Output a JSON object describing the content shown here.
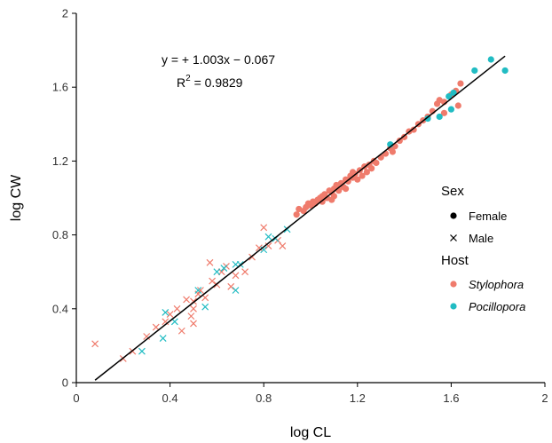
{
  "chart_data": {
    "type": "scatter",
    "title": "",
    "xlabel": "log CL",
    "ylabel": "log CW",
    "xlim": [
      0,
      2
    ],
    "ylim": [
      0,
      2
    ],
    "xticks": [
      0,
      0.4,
      0.8,
      1.2,
      1.6,
      2
    ],
    "yticks": [
      0,
      0.4,
      0.8,
      1.2,
      1.6,
      2
    ],
    "xtick_labels": [
      "0",
      "0.4",
      "0.8",
      "1.2",
      "1.6",
      "2"
    ],
    "ytick_labels": [
      "0",
      "0.4",
      "0.8",
      "1.2",
      "1.6",
      "2"
    ],
    "grid": false,
    "legend_position": "right",
    "colors": {
      "Stylophora": "#ef7b6c",
      "Pocillopora": "#21bcc3",
      "line": "#000000"
    },
    "annotation": {
      "equation": "y = + 1.003x − 0.067",
      "r2_prefix": "R",
      "r2_sup": "2",
      "r2_value": " = 0.9829"
    },
    "regression": {
      "slope": 1.003,
      "intercept": -0.067,
      "x_range": [
        0.08,
        1.83
      ]
    },
    "legend": {
      "sex_title": "Sex",
      "sex_items": [
        {
          "label": "Female",
          "marker": "circle"
        },
        {
          "label": "Male",
          "marker": "cross"
        }
      ],
      "host_title": "Host",
      "host_items": [
        {
          "label": "Stylophora",
          "color": "#ef7b6c"
        },
        {
          "label": "Pocillopora",
          "color": "#21bcc3"
        }
      ]
    },
    "series": [
      {
        "name": "Stylophora",
        "sex": "Female",
        "points": [
          [
            0.94,
            0.91
          ],
          [
            0.95,
            0.94
          ],
          [
            0.97,
            0.93
          ],
          [
            0.98,
            0.95
          ],
          [
            0.99,
            0.97
          ],
          [
            1.0,
            0.96
          ],
          [
            1.01,
            0.98
          ],
          [
            1.02,
            0.97
          ],
          [
            1.03,
            0.99
          ],
          [
            1.04,
            1.0
          ],
          [
            1.05,
            1.01
          ],
          [
            1.05,
            0.98
          ],
          [
            1.06,
            1.02
          ],
          [
            1.07,
            1.0
          ],
          [
            1.08,
            1.04
          ],
          [
            1.09,
            1.03
          ],
          [
            1.1,
            1.05
          ],
          [
            1.1,
            1.01
          ],
          [
            1.11,
            1.07
          ],
          [
            1.12,
            1.04
          ],
          [
            1.13,
            1.08
          ],
          [
            1.14,
            1.06
          ],
          [
            1.15,
            1.1
          ],
          [
            1.15,
            1.05
          ],
          [
            1.16,
            1.09
          ],
          [
            1.17,
            1.12
          ],
          [
            1.18,
            1.11
          ],
          [
            1.18,
            1.14
          ],
          [
            1.19,
            1.13
          ],
          [
            1.2,
            1.1
          ],
          [
            1.21,
            1.15
          ],
          [
            1.22,
            1.12
          ],
          [
            1.23,
            1.17
          ],
          [
            1.24,
            1.14
          ],
          [
            1.25,
            1.18
          ],
          [
            1.26,
            1.16
          ],
          [
            1.27,
            1.2
          ],
          [
            1.28,
            1.19
          ],
          [
            1.3,
            1.22
          ],
          [
            1.32,
            1.24
          ],
          [
            1.34,
            1.27
          ],
          [
            1.36,
            1.28
          ],
          [
            1.38,
            1.31
          ],
          [
            1.4,
            1.33
          ],
          [
            1.42,
            1.36
          ],
          [
            1.44,
            1.37
          ],
          [
            1.46,
            1.4
          ],
          [
            1.48,
            1.42
          ],
          [
            1.5,
            1.44
          ],
          [
            1.52,
            1.47
          ],
          [
            1.54,
            1.51
          ],
          [
            1.55,
            1.53
          ],
          [
            1.57,
            1.52
          ],
          [
            1.6,
            1.56
          ],
          [
            1.62,
            1.58
          ],
          [
            1.64,
            1.62
          ],
          [
            1.63,
            1.5
          ],
          [
            1.57,
            1.46
          ],
          [
            1.35,
            1.25
          ],
          [
            1.09,
            0.99
          ]
        ]
      },
      {
        "name": "Pocillopora",
        "sex": "Female",
        "points": [
          [
            1.34,
            1.29
          ],
          [
            1.5,
            1.43
          ],
          [
            1.55,
            1.44
          ],
          [
            1.6,
            1.48
          ],
          [
            1.61,
            1.57
          ],
          [
            1.7,
            1.69
          ],
          [
            1.77,
            1.75
          ],
          [
            1.83,
            1.69
          ],
          [
            1.59,
            1.55
          ]
        ]
      },
      {
        "name": "Stylophora",
        "sex": "Male",
        "points": [
          [
            0.08,
            0.21
          ],
          [
            0.2,
            0.13
          ],
          [
            0.24,
            0.17
          ],
          [
            0.3,
            0.25
          ],
          [
            0.34,
            0.3
          ],
          [
            0.38,
            0.33
          ],
          [
            0.4,
            0.37
          ],
          [
            0.43,
            0.4
          ],
          [
            0.45,
            0.28
          ],
          [
            0.47,
            0.45
          ],
          [
            0.49,
            0.36
          ],
          [
            0.5,
            0.32
          ],
          [
            0.52,
            0.48
          ],
          [
            0.53,
            0.5
          ],
          [
            0.55,
            0.46
          ],
          [
            0.57,
            0.65
          ],
          [
            0.58,
            0.55
          ],
          [
            0.6,
            0.53
          ],
          [
            0.62,
            0.6
          ],
          [
            0.64,
            0.63
          ],
          [
            0.66,
            0.52
          ],
          [
            0.68,
            0.58
          ],
          [
            0.72,
            0.6
          ],
          [
            0.75,
            0.68
          ],
          [
            0.78,
            0.73
          ],
          [
            0.8,
            0.84
          ],
          [
            0.82,
            0.74
          ],
          [
            0.86,
            0.77
          ],
          [
            0.88,
            0.74
          ],
          [
            0.5,
            0.4
          ],
          [
            0.5,
            0.44
          ]
        ]
      },
      {
        "name": "Pocillopora",
        "sex": "Male",
        "points": [
          [
            0.28,
            0.17
          ],
          [
            0.37,
            0.24
          ],
          [
            0.38,
            0.38
          ],
          [
            0.42,
            0.33
          ],
          [
            0.52,
            0.5
          ],
          [
            0.55,
            0.41
          ],
          [
            0.6,
            0.6
          ],
          [
            0.63,
            0.62
          ],
          [
            0.68,
            0.64
          ],
          [
            0.68,
            0.5
          ],
          [
            0.7,
            0.64
          ],
          [
            0.82,
            0.79
          ],
          [
            0.85,
            0.78
          ],
          [
            0.9,
            0.83
          ],
          [
            0.8,
            0.72
          ]
        ]
      }
    ]
  }
}
